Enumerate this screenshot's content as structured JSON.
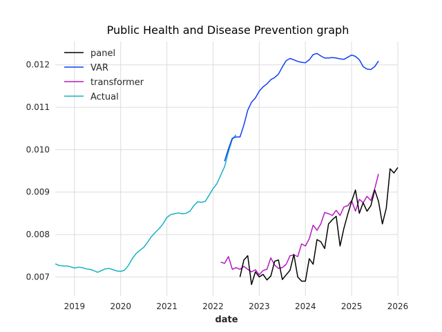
{
  "chart_data": {
    "type": "line",
    "title": "Public Health and Disease Prevention graph",
    "xlabel": "date",
    "ylabel": "",
    "xlim": [
      "2018-08-01",
      "2026-01-01"
    ],
    "ylim": [
      0.00655,
      0.01255
    ],
    "grid": true,
    "legend_position": "top-left",
    "x_ticks": [
      "2019",
      "2020",
      "2021",
      "2022",
      "2023",
      "2024",
      "2025",
      "2026"
    ],
    "y_ticks": [
      "0.007",
      "0.008",
      "0.009",
      "0.010",
      "0.011",
      "0.012"
    ],
    "series": [
      {
        "name": "panel",
        "color": "#000000",
        "x": [
          "2022-08",
          "2022-09",
          "2022-10",
          "2022-11",
          "2022-12",
          "2023-01",
          "2023-02",
          "2023-03",
          "2023-04",
          "2023-05",
          "2023-06",
          "2023-07",
          "2023-08",
          "2023-09",
          "2023-10",
          "2023-11",
          "2023-12",
          "2024-01",
          "2024-02",
          "2024-03",
          "2024-04",
          "2024-05",
          "2024-06",
          "2024-07",
          "2024-08",
          "2024-09",
          "2024-10",
          "2024-11",
          "2024-12",
          "2025-01",
          "2025-02",
          "2025-03",
          "2025-04",
          "2025-05",
          "2025-06",
          "2025-07",
          "2025-08",
          "2025-09",
          "2025-10",
          "2025-11",
          "2025-12",
          "2026-01"
        ],
        "values": [
          0.007,
          0.0074,
          0.0075,
          0.00682,
          0.00712,
          0.007,
          0.00706,
          0.00693,
          0.00702,
          0.00737,
          0.0074,
          0.00694,
          0.00705,
          0.00716,
          0.00753,
          0.007,
          0.0069,
          0.0069,
          0.00743,
          0.0073,
          0.00788,
          0.00783,
          0.00767,
          0.00825,
          0.00835,
          0.00843,
          0.00773,
          0.00815,
          0.00848,
          0.00878,
          0.00905,
          0.0085,
          0.00875,
          0.00855,
          0.00868,
          0.00905,
          0.00878,
          0.00825,
          0.00862,
          0.00955,
          0.00945,
          0.00958
        ]
      },
      {
        "name": "VAR",
        "color": "#0b3ef5",
        "x": [
          "2022-04",
          "2022-05",
          "2022-06",
          "2022-07",
          "2022-08",
          "2022-09",
          "2022-10",
          "2022-11",
          "2022-12",
          "2023-01",
          "2023-02",
          "2023-03",
          "2023-04",
          "2023-05",
          "2023-06",
          "2023-07",
          "2023-08",
          "2023-09",
          "2023-10",
          "2023-11",
          "2023-12",
          "2024-01",
          "2024-02",
          "2024-03",
          "2024-04",
          "2024-05",
          "2024-06",
          "2024-07",
          "2024-08",
          "2024-09",
          "2024-10",
          "2024-11",
          "2024-12",
          "2025-01",
          "2025-02",
          "2025-03",
          "2025-04",
          "2025-05",
          "2025-06",
          "2025-07",
          "2025-08"
        ],
        "values": [
          0.00973,
          0.01002,
          0.01027,
          0.0103,
          0.0103,
          0.01058,
          0.01093,
          0.01112,
          0.01122,
          0.01138,
          0.01148,
          0.01155,
          0.01165,
          0.0117,
          0.01178,
          0.01195,
          0.0121,
          0.01215,
          0.01212,
          0.01208,
          0.01206,
          0.01205,
          0.01212,
          0.01224,
          0.01227,
          0.01221,
          0.01216,
          0.01216,
          0.01217,
          0.01216,
          0.01214,
          0.01213,
          0.01218,
          0.01223,
          0.0122,
          0.01212,
          0.01196,
          0.0119,
          0.01189,
          0.01196,
          0.01209
        ]
      },
      {
        "name": "transformer",
        "color": "#b518c0",
        "x": [
          "2022-03",
          "2022-04",
          "2022-05",
          "2022-06",
          "2022-07",
          "2022-08",
          "2022-09",
          "2022-10",
          "2022-11",
          "2022-12",
          "2023-01",
          "2023-02",
          "2023-03",
          "2023-04",
          "2023-05",
          "2023-06",
          "2023-07",
          "2023-08",
          "2023-09",
          "2023-10",
          "2023-11",
          "2023-12",
          "2024-01",
          "2024-02",
          "2024-03",
          "2024-04",
          "2024-05",
          "2024-06",
          "2024-07",
          "2024-08",
          "2024-09",
          "2024-10",
          "2024-11",
          "2024-12",
          "2025-01",
          "2025-02",
          "2025-03",
          "2025-04",
          "2025-05",
          "2025-06",
          "2025-07",
          "2025-08"
        ],
        "values": [
          0.00735,
          0.00732,
          0.00748,
          0.00718,
          0.00722,
          0.00718,
          0.00725,
          0.00718,
          0.00712,
          0.00717,
          0.00705,
          0.00715,
          0.00718,
          0.00745,
          0.00728,
          0.0072,
          0.00722,
          0.0073,
          0.0075,
          0.00752,
          0.00748,
          0.00778,
          0.00773,
          0.0079,
          0.00822,
          0.0081,
          0.00825,
          0.00852,
          0.00849,
          0.00845,
          0.00857,
          0.00845,
          0.00865,
          0.00868,
          0.0088,
          0.00855,
          0.00883,
          0.00875,
          0.0089,
          0.0088,
          0.00908,
          0.00943
        ]
      },
      {
        "name": "Actual",
        "color": "#17b1c2",
        "x": [
          "2018-08",
          "2018-09",
          "2018-10",
          "2018-11",
          "2018-12",
          "2019-01",
          "2019-02",
          "2019-03",
          "2019-04",
          "2019-05",
          "2019-06",
          "2019-07",
          "2019-08",
          "2019-09",
          "2019-10",
          "2019-11",
          "2019-12",
          "2020-01",
          "2020-02",
          "2020-03",
          "2020-04",
          "2020-05",
          "2020-06",
          "2020-07",
          "2020-08",
          "2020-09",
          "2020-10",
          "2020-11",
          "2020-12",
          "2021-01",
          "2021-02",
          "2021-03",
          "2021-04",
          "2021-05",
          "2021-06",
          "2021-07",
          "2021-08",
          "2021-09",
          "2021-10",
          "2021-11",
          "2021-12",
          "2022-01",
          "2022-02",
          "2022-03",
          "2022-04",
          "2022-05",
          "2022-06",
          "2022-07"
        ],
        "values": [
          0.00731,
          0.00727,
          0.00726,
          0.00726,
          0.00724,
          0.00721,
          0.00723,
          0.00722,
          0.00719,
          0.00718,
          0.00715,
          0.00711,
          0.00715,
          0.00719,
          0.0072,
          0.00717,
          0.00714,
          0.00713,
          0.00716,
          0.00727,
          0.00743,
          0.00755,
          0.00763,
          0.0077,
          0.00782,
          0.00795,
          0.00805,
          0.00814,
          0.00825,
          0.0084,
          0.00847,
          0.00849,
          0.00851,
          0.00849,
          0.0085,
          0.00855,
          0.00868,
          0.00877,
          0.00876,
          0.00878,
          0.00893,
          0.00908,
          0.0092,
          0.0094,
          0.0096,
          0.00995,
          0.01025,
          0.01035
        ]
      }
    ]
  }
}
